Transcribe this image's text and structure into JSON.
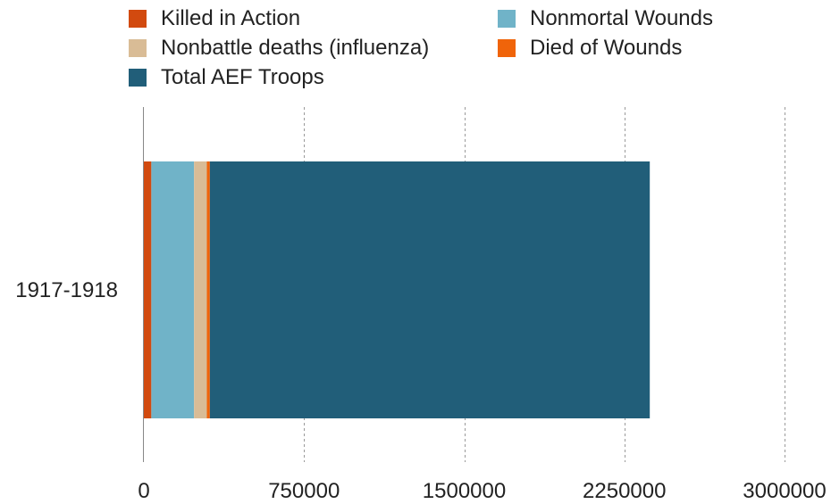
{
  "chart_data": {
    "type": "bar",
    "orientation": "horizontal",
    "stacked": true,
    "categories": [
      "1917-1918"
    ],
    "series": [
      {
        "name": "Killed in Action",
        "color": "#D24A0F",
        "values": [
          35000
        ]
      },
      {
        "name": "Nonmortal Wounds",
        "color": "#70B3C8",
        "values": [
          200000
        ]
      },
      {
        "name": "Nonbattle deaths (influenza)",
        "color": "#D9BC96",
        "values": [
          60000
        ]
      },
      {
        "name": "Died of Wounds",
        "color": "#F0640A",
        "values": [
          14000
        ]
      },
      {
        "name": "Total AEF Troops",
        "color": "#215E79",
        "values": [
          2060000
        ]
      }
    ],
    "xlim": [
      0,
      3000000
    ],
    "xticks": [
      0,
      750000,
      1500000,
      2250000,
      3000000
    ],
    "xtick_labels": [
      "0",
      "750000",
      "1500000",
      "2250000",
      "3000000"
    ],
    "grid": "vertical dashed",
    "legend_position": "top"
  }
}
